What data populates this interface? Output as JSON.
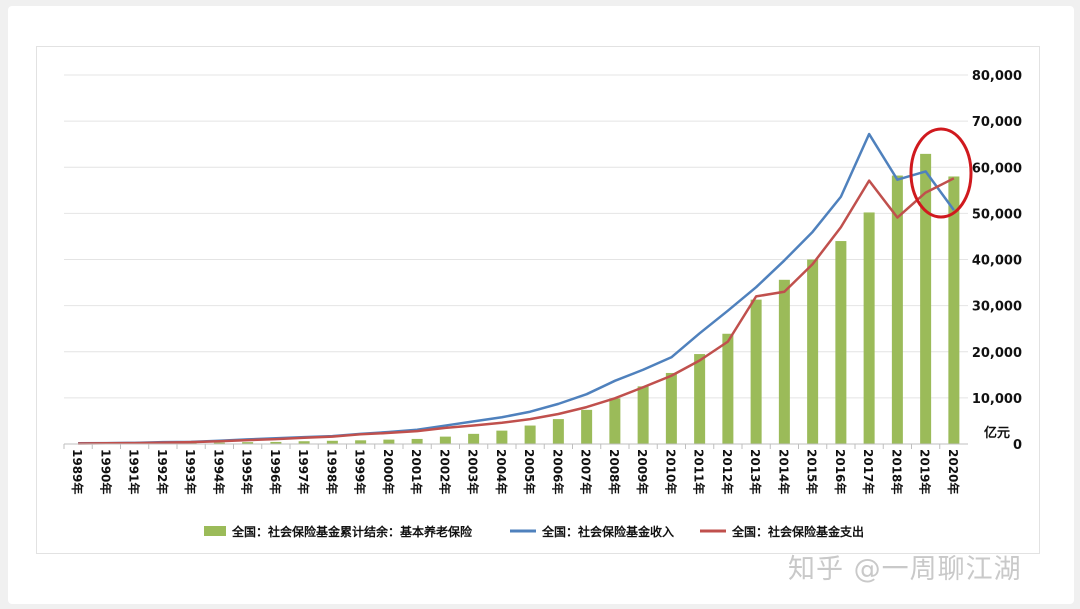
{
  "chart_data": {
    "type": "bar",
    "title": "",
    "xlabel": "",
    "ylabel": "亿元",
    "ylim": [
      0,
      80000
    ],
    "y_ticks": [
      "0",
      "10,000",
      "20,000",
      "30,000",
      "40,000",
      "50,000",
      "60,000",
      "70,000",
      "80,000"
    ],
    "y_axis_side": "right",
    "grid": true,
    "legend_position": "bottom",
    "categories": [
      "1989年",
      "1990年",
      "1991年",
      "1992年",
      "1993年",
      "1994年",
      "1995年",
      "1996年",
      "1997年",
      "1998年",
      "1999年",
      "2000年",
      "2001年",
      "2002年",
      "2003年",
      "2004年",
      "2005年",
      "2006年",
      "2007年",
      "2008年",
      "2009年",
      "2010年",
      "2011年",
      "2012年",
      "2013年",
      "2014年",
      "2015年",
      "2016年",
      "2017年",
      "2018年",
      "2019年",
      "2020年"
    ],
    "series": [
      {
        "name": "全国：社会保险基金累计结余：基本养老保险",
        "kind": "bar",
        "color": "#9bbb59",
        "values": [
          70,
          100,
          140,
          220,
          260,
          300,
          400,
          450,
          600,
          700,
          800,
          950,
          1100,
          1600,
          2200,
          2900,
          4000,
          5400,
          7400,
          9900,
          12500,
          15400,
          19500,
          23900,
          31300,
          35600,
          40000,
          44000,
          50200,
          58200,
          62900,
          58000
        ]
      },
      {
        "name": "全国：社会保险基金收入",
        "kind": "line",
        "color": "#4f81bd",
        "values": [
          150,
          200,
          250,
          400,
          450,
          700,
          1000,
          1250,
          1500,
          1700,
          2200,
          2600,
          3100,
          4000,
          4900,
          5800,
          7000,
          8700,
          10800,
          13700,
          16100,
          18800,
          24000,
          28900,
          34000,
          39800,
          46000,
          53600,
          67200,
          57300,
          59100,
          50700
        ]
      },
      {
        "name": "全国：社会保险基金支出",
        "kind": "line",
        "color": "#c0504d",
        "values": [
          100,
          150,
          200,
          300,
          400,
          600,
          850,
          1050,
          1350,
          1600,
          2100,
          2400,
          2800,
          3500,
          4000,
          4600,
          5400,
          6500,
          8000,
          9900,
          12300,
          14800,
          18100,
          22200,
          32000,
          33000,
          39000,
          47000,
          57100,
          49100,
          54500,
          57600
        ]
      }
    ]
  },
  "watermark": "知乎 @一周聊江湖"
}
